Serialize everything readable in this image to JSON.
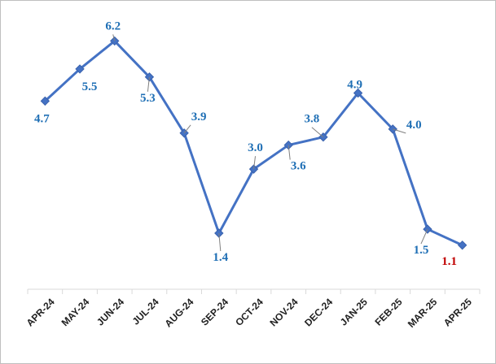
{
  "chart_data": {
    "type": "line",
    "categories": [
      "APR-24",
      "MAY-24",
      "JUN-24",
      "JUL-24",
      "AUG-24",
      "SEP-24",
      "OCT-24",
      "NOV-24",
      "DEC-24",
      "JAN-25",
      "FEB-25",
      "MAR-25",
      "APR-25"
    ],
    "series": [
      {
        "values": [
          4.7,
          5.5,
          6.2,
          5.3,
          3.9,
          1.4,
          3.0,
          3.6,
          3.8,
          4.9,
          4.0,
          1.5,
          1.1
        ]
      }
    ],
    "data_labels": [
      "4.7",
      "5.5",
      "6.2",
      "5.3",
      "3.9",
      "1.4",
      "3.0",
      "3.6",
      "3.8",
      "4.9",
      "4.0",
      "1.5",
      "1.1"
    ],
    "title": "",
    "xlabel": "",
    "ylabel": "",
    "ylim": [
      0,
      7
    ],
    "grid": false,
    "legend": "none",
    "colors": {
      "line": "#4472c4",
      "marker": "#4472c4",
      "label": "#1f6fb5",
      "last_label": "#c00000",
      "leader": "#7f7f7f",
      "axis": "#d9d9d9"
    }
  }
}
